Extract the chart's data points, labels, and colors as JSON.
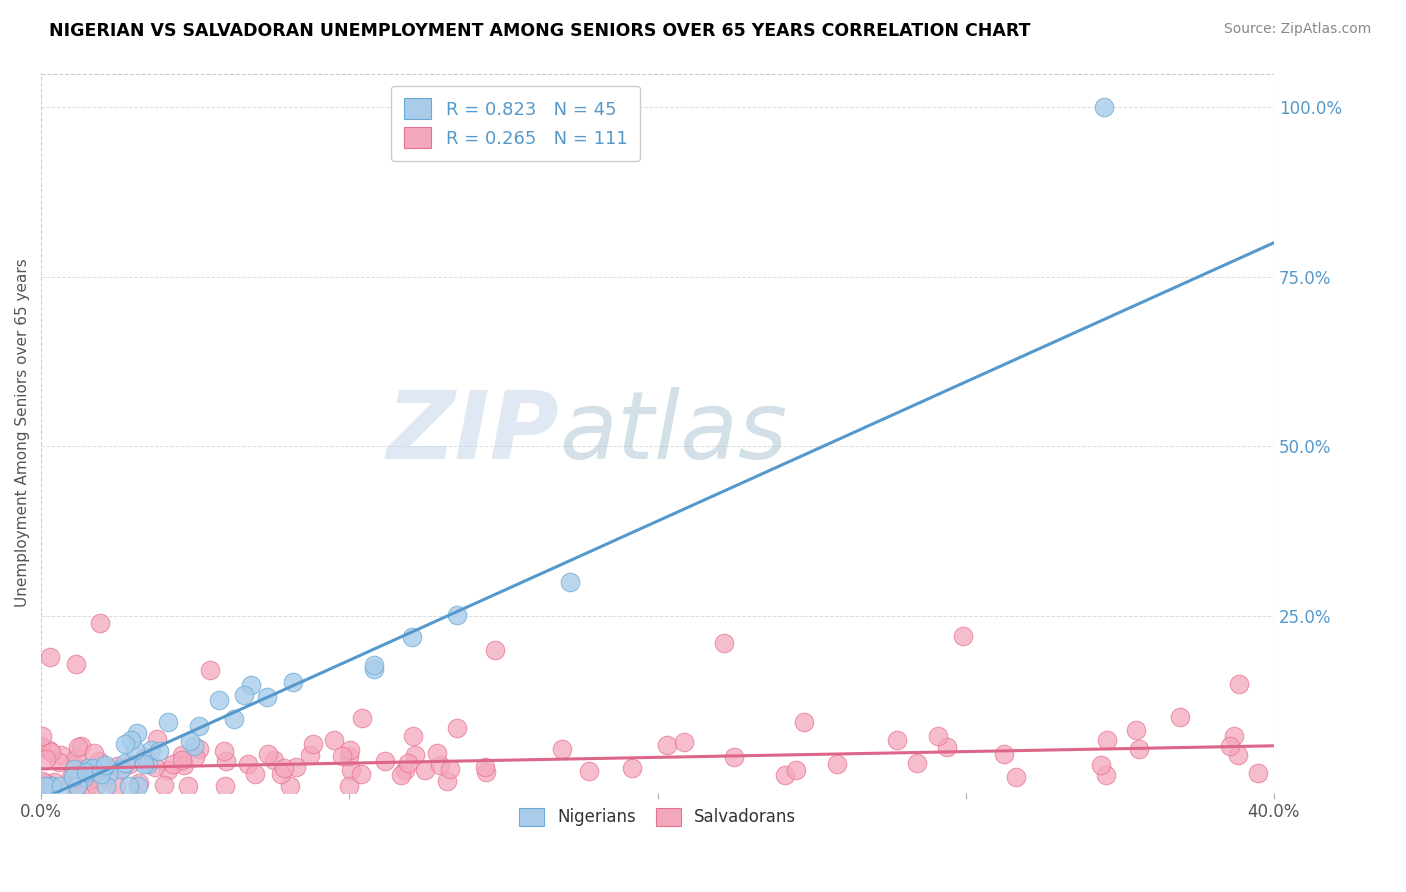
{
  "title": "NIGERIAN VS SALVADORAN UNEMPLOYMENT AMONG SENIORS OVER 65 YEARS CORRELATION CHART",
  "source": "Source: ZipAtlas.com",
  "ylabel": "Unemployment Among Seniors over 65 years",
  "xlim": [
    0.0,
    0.4
  ],
  "ylim": [
    -0.01,
    1.05
  ],
  "ytick_right_labels": [
    "100.0%",
    "75.0%",
    "50.0%",
    "25.0%"
  ],
  "ytick_right_values": [
    1.0,
    0.75,
    0.5,
    0.25
  ],
  "watermark_zip": "ZIP",
  "watermark_atlas": "atlas",
  "nigerian_R": 0.823,
  "nigerian_N": 45,
  "salvadoran_R": 0.265,
  "salvadoran_N": 111,
  "nigerian_color": "#A8CCEA",
  "salvadoran_color": "#F4A8BC",
  "nigerian_edge_color": "#6AAAD4",
  "salvadoran_edge_color": "#E87090",
  "nigerian_line_color": "#5599CC",
  "salvadoran_line_color": "#DD6688",
  "nig_slope": 2.05,
  "nig_intercept": -0.02,
  "sal_slope": 0.085,
  "sal_intercept": 0.025,
  "right_label_color": "#5599CC",
  "grid_color": "#DDDDDD",
  "border_color": "#CCCCCC",
  "title_color": "#000000",
  "source_color": "#888888",
  "ylabel_color": "#555555",
  "legend_text_color": "#5599CC",
  "bottom_legend_color": "#333333"
}
